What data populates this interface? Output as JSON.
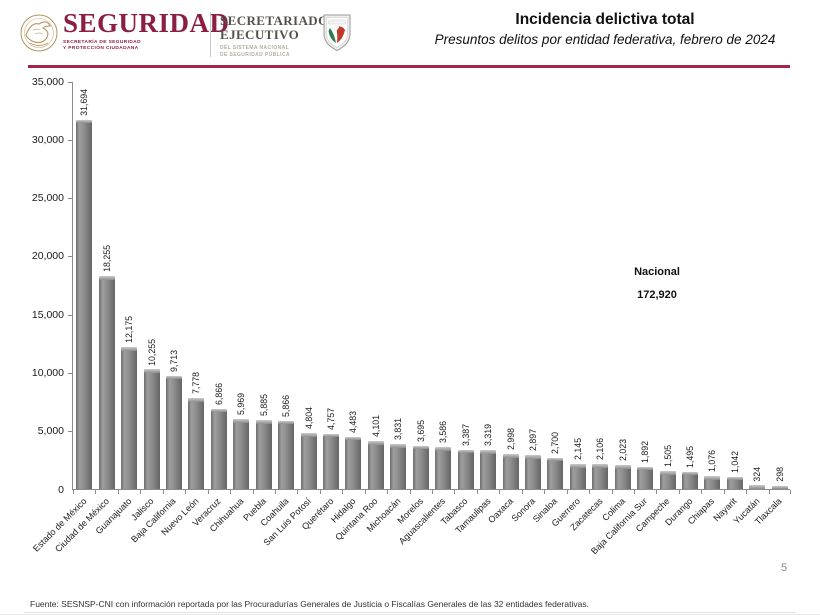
{
  "header": {
    "brand": {
      "title": "SEGURIDAD",
      "subtitle_line1": "SECRETARÍA DE SEGURIDAD",
      "subtitle_line2": "Y PROTECCIÓN CIUDADANA"
    },
    "secretariat": {
      "title_line1": "SECRETARIADO",
      "title_line2": "EJECUTIVO",
      "subtitle_line1": "DEL SISTEMA NACIONAL",
      "subtitle_line2": "DE SEGURIDAD PÚBLICA"
    },
    "title": "Incidencia delictiva total",
    "subtitle": "Presuntos delitos por entidad federativa, febrero de 2024"
  },
  "colors": {
    "brand_maroon": "#8c1e43",
    "header_rule": "#a32649",
    "bar_gray": "#828282",
    "axis_gray": "#8c8c8c",
    "emblem_gold": "#b3945f"
  },
  "icons": {
    "left_logo": "mexican-eagle-emblem",
    "right_logo": "mexican-shield-emblem"
  },
  "chart_data": {
    "type": "bar",
    "title": "Incidencia delictiva total",
    "subtitle": "Presuntos delitos por entidad federativa, febrero de 2024",
    "categories": [
      "Estado de México",
      "Ciudad de México",
      "Guanajuato",
      "Jalisco",
      "Baja California",
      "Nuevo León",
      "Veracruz",
      "Chihuahua",
      "Puebla",
      "Coahuila",
      "San Luis Potosí",
      "Querétaro",
      "Hidalgo",
      "Quintana Roo",
      "Michoacán",
      "Morelos",
      "Aguascalientes",
      "Tabasco",
      "Tamaulipas",
      "Oaxaca",
      "Sonora",
      "Sinaloa",
      "Guerrero",
      "Zacatecas",
      "Colima",
      "Baja California Sur",
      "Campeche",
      "Durango",
      "Chiapas",
      "Nayarit",
      "Yucatán",
      "Tlaxcala"
    ],
    "values": [
      31694,
      18255,
      12175,
      10255,
      9713,
      7778,
      6866,
      5969,
      5885,
      5866,
      4804,
      4757,
      4483,
      4101,
      3831,
      3695,
      3586,
      3387,
      3319,
      2998,
      2897,
      2700,
      2145,
      2106,
      2023,
      1892,
      1505,
      1495,
      1076,
      1042,
      324,
      298
    ],
    "value_labels": [
      "31,694",
      "18,255",
      "12,175",
      "10,255",
      "9,713",
      "7,778",
      "6,866",
      "5,969",
      "5,885",
      "5,866",
      "4,804",
      "4,757",
      "4,483",
      "4,101",
      "3,831",
      "3,695",
      "3,586",
      "3,387",
      "3,319",
      "2,998",
      "2,897",
      "2,700",
      "2,145",
      "2,106",
      "2,023",
      "1,892",
      "1,505",
      "1,495",
      "1,076",
      "1,042",
      "324",
      "298"
    ],
    "xlabel": "",
    "ylabel": "",
    "ylim": [
      0,
      35000
    ],
    "ytick_step": 5000,
    "ytick_labels": [
      "0",
      "5,000",
      "10,000",
      "15,000",
      "20,000",
      "25,000",
      "30,000",
      "35,000"
    ],
    "grid": false,
    "legend": null,
    "value_labels_rotation": -90,
    "category_labels_rotation": -45,
    "annotation": {
      "label": "Nacional",
      "value": "172,920"
    }
  },
  "footer": {
    "source": "Fuente: SESNSP-CNI con información reportada por las Procuradurías Generales de Justicia o Fiscalías Generales de las 32 entidades federativas.",
    "page_number": "5"
  }
}
